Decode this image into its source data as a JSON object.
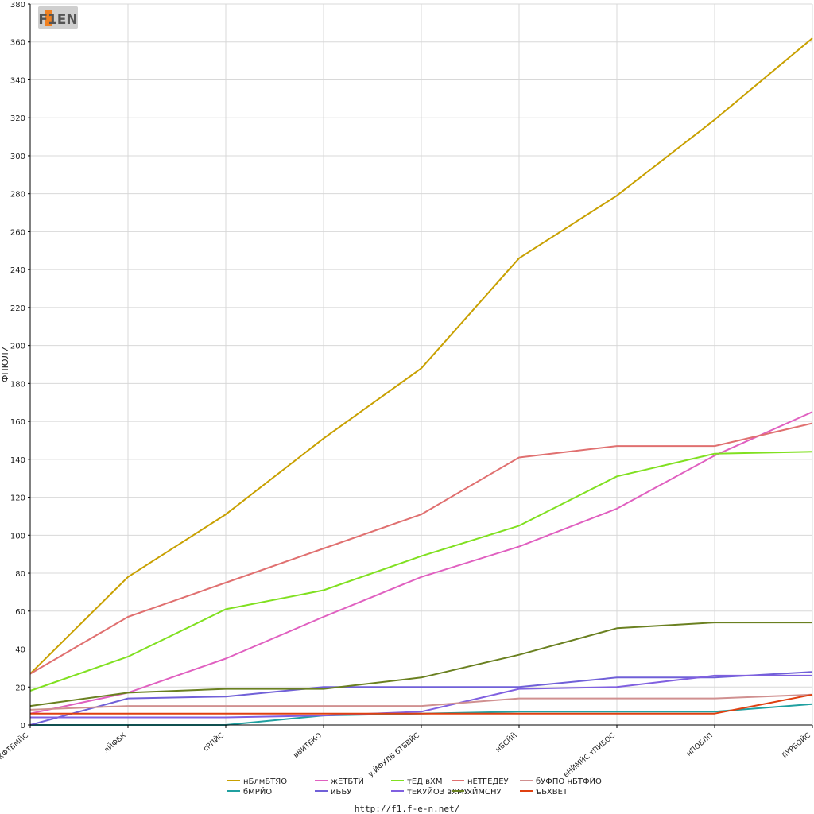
{
  "logo": {
    "text": "F1EN"
  },
  "footer": {
    "url": "http://f1.f-e-n.net/"
  },
  "colors": {
    "grid": "#d8d8d8",
    "axis": "#000000",
    "background": "#ffffff"
  },
  "chart_data": {
    "type": "line",
    "title": "",
    "xlabel": "",
    "ylabel": "ФПЮЛИ",
    "ylim": [
      0,
      380
    ],
    "yticks": [
      0,
      20,
      40,
      60,
      80,
      100,
      120,
      140,
      160,
      180,
      200,
      220,
      240,
      260,
      280,
      300,
      320,
      340,
      360,
      380
    ],
    "grid": true,
    "legend_position": "bottom",
    "categories": [
      "бЖФТБМЙС",
      "лЙФБК",
      "сРПЙС",
      "вВИТЕКО",
      "у.ЙФУЛБ бТБВЙС",
      "нБСЙЙ",
      "еНЙМЙС тПИБОС",
      "нПОБЛП",
      "йУРБОЙС"
    ],
    "series": [
      {
        "name": "нБлмБТЯО",
        "color": "#c8a000",
        "values": [
          27,
          78,
          111,
          151,
          188,
          246,
          279,
          319,
          362
        ]
      },
      {
        "name": "бМРЙО",
        "color": "#20a0a0",
        "values": [
          0,
          0,
          0,
          5,
          6,
          7,
          7,
          7,
          11
        ]
      },
      {
        "name": "жЕТБТЙ",
        "color": "#e060c0",
        "values": [
          6,
          17,
          35,
          57,
          78,
          94,
          114,
          142,
          165
        ]
      },
      {
        "name": "иББУ",
        "color": "#7060d8",
        "values": [
          0,
          14,
          15,
          20,
          20,
          20,
          25,
          25,
          28
        ]
      },
      {
        "name": "тЕД вХМ",
        "color": "#80e020",
        "values": [
          18,
          36,
          61,
          71,
          89,
          105,
          131,
          143,
          144
        ]
      },
      {
        "name": "тЕКУЙОЗ вХМУ",
        "color": "#8060e0",
        "values": [
          4,
          4,
          4,
          5,
          7,
          19,
          20,
          26,
          26
        ]
      },
      {
        "name": "нЕТГЕДЕУ",
        "color": "#e07070",
        "values": [
          27,
          57,
          75,
          93,
          111,
          141,
          147,
          147,
          159
        ]
      },
      {
        "name": "хЙМСНУ",
        "color": "#6a8020",
        "values": [
          10,
          17,
          19,
          19,
          25,
          37,
          51,
          54,
          54
        ]
      },
      {
        "name": "бУФПО нБТФЙО",
        "color": "#d09090",
        "values": [
          8,
          10,
          10,
          10,
          10,
          14,
          14,
          14,
          16
        ]
      },
      {
        "name": "ъБХВЕТ",
        "color": "#e04010",
        "values": [
          6,
          6,
          6,
          6,
          6,
          6,
          6,
          6,
          16
        ]
      }
    ]
  }
}
